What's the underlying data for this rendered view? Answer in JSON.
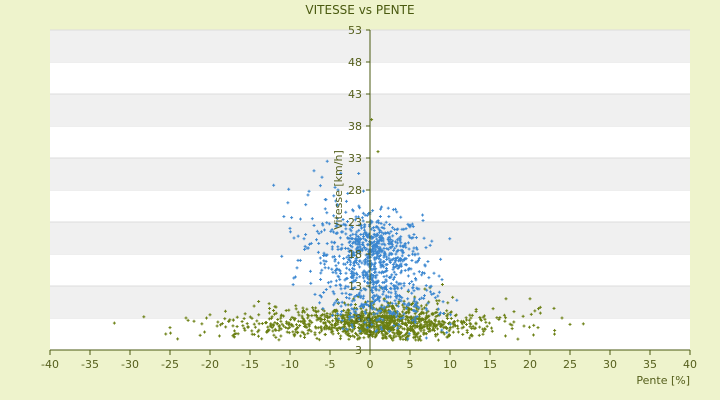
{
  "chart_data": {
    "type": "scatter",
    "title": "VITESSE vs PENTE",
    "xlabel": "Pente [%]",
    "ylabel": "Vitesse [km/h]",
    "xlim": [
      -40,
      40
    ],
    "ylim": [
      3,
      53
    ],
    "xticks": [
      "-40",
      "-35",
      "-30",
      "-25",
      "-20",
      "-15",
      "-10",
      "-5",
      "0",
      "5",
      "10",
      "15",
      "20",
      "25",
      "30",
      "35",
      "40"
    ],
    "yticks": [
      "3",
      "8",
      "13",
      "18",
      "23",
      "28",
      "33",
      "38",
      "43",
      "48",
      "53"
    ],
    "grid": "horizontal alternating bands",
    "legend": "none",
    "series": [
      {
        "color": "#3b87d0",
        "marker": "+",
        "clusters": [
          {
            "n": 650,
            "cx": 0.5,
            "sx": 3.0,
            "cy": 18.0,
            "sy": 3.0
          },
          {
            "n": 260,
            "cx": 1.5,
            "sx": 4.0,
            "cy": 10.5,
            "sy": 2.2
          },
          {
            "n": 70,
            "cx": -5.5,
            "sx": 2.5,
            "cy": 22.0,
            "sy": 4.0
          }
        ],
        "points": [
          [
            -7.0,
            31.0
          ],
          [
            -6.0,
            30.0
          ],
          [
            -4.0,
            28.0
          ],
          [
            -5.5,
            26.5
          ],
          [
            -9.5,
            20.5
          ],
          [
            -10,
            22
          ],
          [
            -9,
            17
          ],
          [
            6,
            18
          ],
          [
            7,
            19
          ],
          [
            9,
            14
          ],
          [
            -1.5,
            19.5
          ],
          [
            -3,
            15
          ],
          [
            8,
            15
          ],
          [
            0,
            24.5
          ]
        ]
      },
      {
        "color": "#6a7f12",
        "marker": "+",
        "clusters": [
          {
            "n": 850,
            "cx": 0.0,
            "sx": 8.5,
            "cy": 7.0,
            "sy": 1.3
          },
          {
            "n": 350,
            "cx": 2.0,
            "sx": 3.5,
            "cy": 8.0,
            "sy": 1.8
          }
        ],
        "points": [
          [
            0.2,
            39.0
          ],
          [
            1.0,
            34.0
          ],
          [
            -25.0,
            6.5
          ],
          [
            -23,
            8
          ],
          [
            25,
            7
          ],
          [
            24,
            8
          ],
          [
            20,
            11
          ],
          [
            17,
            11
          ],
          [
            18,
            9
          ],
          [
            -22,
            7.5
          ],
          [
            -20,
            8.5
          ],
          [
            21,
            6.5
          ],
          [
            23,
            9.5
          ]
        ]
      }
    ]
  }
}
